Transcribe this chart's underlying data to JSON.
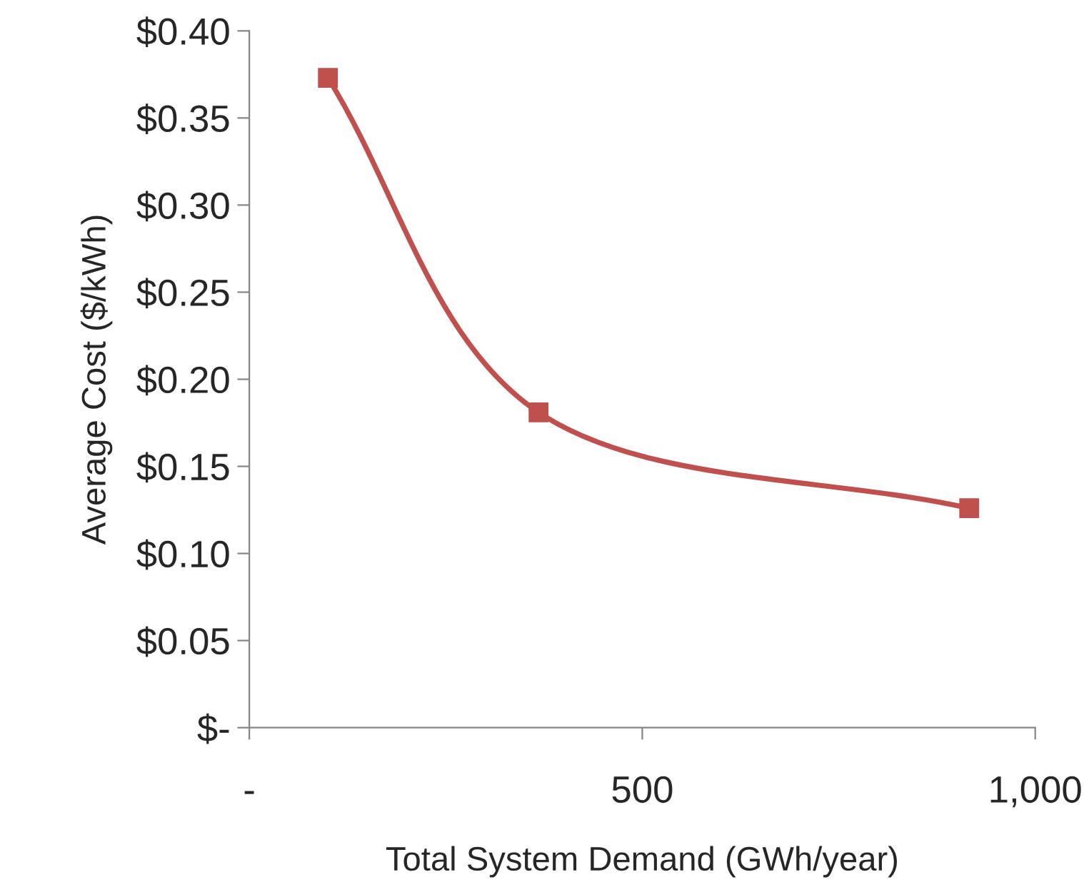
{
  "chart_data": {
    "type": "line",
    "xlabel": "Total System Demand (GWh/year)",
    "ylabel": "Average Cost ($/kWh)",
    "x": [
      100,
      368,
      916
    ],
    "series": [
      {
        "color": "#c0504d",
        "values": [
          0.373,
          0.181,
          0.126
        ]
      }
    ],
    "xlim": [
      0,
      1000
    ],
    "xticks": [
      {
        "value": 0,
        "label": "-"
      },
      500,
      {
        "value": 1000,
        "label": "1,000"
      }
    ],
    "ylim": [
      0,
      0.4
    ],
    "yticks": [
      {
        "value": 0,
        "label": "$-"
      },
      {
        "value": 0.05,
        "label": "$0.05"
      },
      {
        "value": 0.1,
        "label": "$0.10"
      },
      {
        "value": 0.15,
        "label": "$0.15"
      },
      {
        "value": 0.2,
        "label": "$0.20"
      },
      {
        "value": 0.25,
        "label": "$0.25"
      },
      {
        "value": 0.3,
        "label": "$0.30"
      },
      {
        "value": 0.35,
        "label": "$0.35"
      },
      {
        "value": 0.4,
        "label": "$0.40"
      }
    ],
    "grid": false,
    "legend": false,
    "marker": "square",
    "line_style": "solid"
  }
}
